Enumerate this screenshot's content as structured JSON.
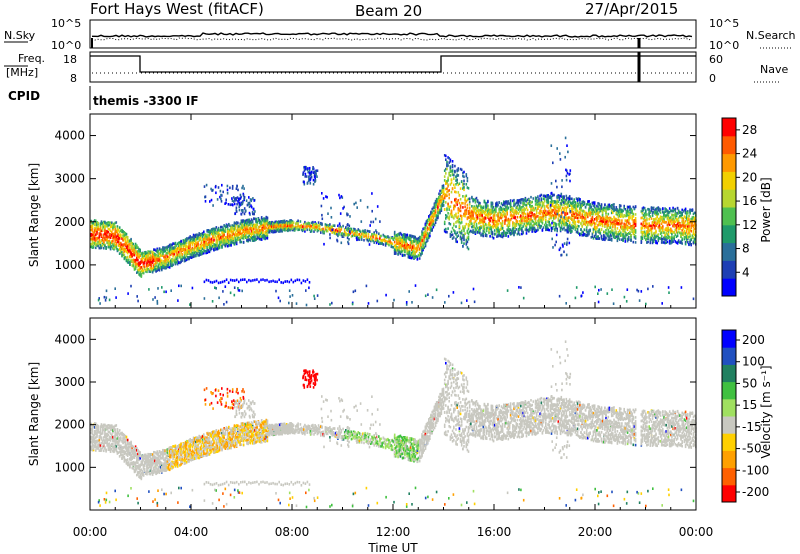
{
  "header": {
    "title": "Fort Hays West (fitACF)",
    "beam": "Beam 20",
    "date": "27/Apr/2015"
  },
  "noise_panel": {
    "left_label": "N.Sky",
    "right_label": "N.Search",
    "left_ticks": [
      "10^5",
      "10^0"
    ],
    "right_ticks": [
      "10^5",
      "10^0"
    ]
  },
  "freq_panel": {
    "left_label": "Freq.",
    "left_unit": "[MHz]",
    "right_label": "Nave",
    "left_ticks": [
      "18",
      "8"
    ],
    "right_ticks": [
      "60",
      "0"
    ]
  },
  "cpid_panel": {
    "label": "CPID",
    "program": "themis -3300 IF"
  },
  "colors": {
    "power": [
      "#0000ff",
      "#1e3fb4",
      "#2a6f9a",
      "#1f9a6a",
      "#4fc050",
      "#b7d630",
      "#f2d000",
      "#ff9900",
      "#ff5a00",
      "#ff0000"
    ],
    "velocity_bar": [
      "#ff0000",
      "#ff6000",
      "#ffa000",
      "#ffd000",
      "#c8c8c0",
      "#a0e060",
      "#40c040",
      "#208060",
      "#2050c0",
      "#0000ff"
    ],
    "ground_scatter": "#c8c8c0"
  },
  "chart_data": [
    {
      "type": "heatmap",
      "name": "power",
      "ylabel": "Slant Range [km]",
      "y_ticks": [
        "1000",
        "2000",
        "3000",
        "4000"
      ],
      "ylim": [
        0,
        4500
      ],
      "colorbar": {
        "label": "Power [dB]",
        "ticks": [
          "4",
          "8",
          "12",
          "16",
          "20",
          "24",
          "28"
        ],
        "range": [
          0,
          30
        ]
      },
      "series": [
        {
          "x_hours": [
            0,
            1,
            2,
            3,
            4,
            5,
            6,
            7,
            8,
            9,
            10,
            11,
            12,
            13,
            14,
            15,
            16,
            17,
            18,
            19,
            20,
            21,
            22,
            23,
            24
          ],
          "range_center_km": [
            1750,
            1700,
            1050,
            1200,
            1450,
            1650,
            1800,
            1900,
            1950,
            1900,
            1800,
            1700,
            1550,
            1400,
            2700,
            2200,
            2050,
            2150,
            2250,
            2200,
            2050,
            2000,
            1950,
            1950,
            1900
          ]
        }
      ]
    },
    {
      "type": "heatmap",
      "name": "velocity",
      "ylabel": "Slant Range [km]",
      "xlabel": "Time UT",
      "x_ticks": [
        "00:00",
        "04:00",
        "08:00",
        "12:00",
        "16:00",
        "20:00",
        "00:00"
      ],
      "y_ticks": [
        "1000",
        "2000",
        "3000",
        "4000"
      ],
      "ylim": [
        0,
        4500
      ],
      "colorbar": {
        "label": "Velocity [m s⁻¹]",
        "ticks": [
          "200",
          "100",
          "50",
          "15",
          "-15",
          "-50",
          "-100",
          "-200"
        ],
        "range": [
          -250,
          250
        ]
      }
    }
  ]
}
